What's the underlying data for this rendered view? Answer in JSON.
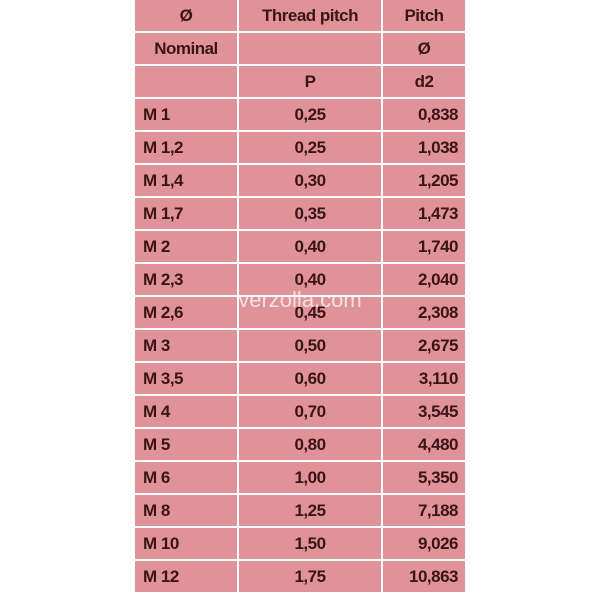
{
  "table": {
    "header": [
      [
        "Ø",
        "Thread pitch",
        "Pitch"
      ],
      [
        "Nominal",
        null,
        "Ø"
      ],
      [
        null,
        "P",
        "d2"
      ]
    ],
    "rows": [
      [
        "M 1",
        "0,25",
        "0,838"
      ],
      [
        "M 1,2",
        "0,25",
        "1,038"
      ],
      [
        "M 1,4",
        "0,30",
        "1,205"
      ],
      [
        "M 1,7",
        "0,35",
        "1,473"
      ],
      [
        "M 2",
        "0,40",
        "1,740"
      ],
      [
        "M 2,3",
        "0,40",
        "2,040"
      ],
      [
        "M 2,6",
        "0,45",
        "2,308"
      ],
      [
        "M 3",
        "0,50",
        "2,675"
      ],
      [
        "M 3,5",
        "0,60",
        "3,110"
      ],
      [
        "M 4",
        "0,70",
        "3,545"
      ],
      [
        "M 5",
        "0,80",
        "4,480"
      ],
      [
        "M 6",
        "1,00",
        "5,350"
      ],
      [
        "M 8",
        "1,25",
        "7,188"
      ],
      [
        "M 10",
        "1,50",
        "9,026"
      ],
      [
        "M 12",
        "1,75",
        "10,863"
      ]
    ]
  },
  "watermark": "verzolla.com"
}
